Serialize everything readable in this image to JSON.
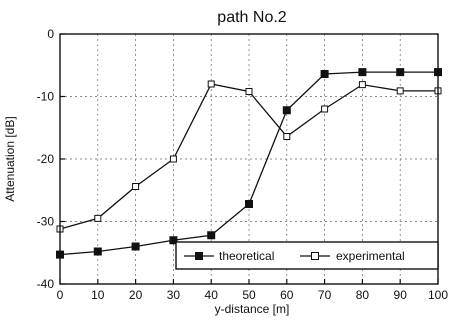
{
  "chart_data": {
    "type": "line",
    "title": "path No.2",
    "xlabel": "y-distance [m]",
    "ylabel": "Attenuation [dB]",
    "xlim": [
      0,
      100
    ],
    "ylim": [
      -40,
      0
    ],
    "xticks": [
      0,
      10,
      20,
      30,
      40,
      50,
      60,
      70,
      80,
      90,
      100
    ],
    "yticks": [
      0,
      -10,
      -20,
      -30,
      -40
    ],
    "grid": true,
    "legend_position": "bottom-right",
    "series": [
      {
        "name": "theoretical",
        "marker": "filled-square",
        "color": "#111111",
        "x": [
          0,
          10,
          20,
          30,
          40,
          50,
          60,
          70,
          80,
          90,
          100
        ],
        "y": [
          -35.3,
          -34.8,
          -34.0,
          -33.0,
          -32.2,
          -27.2,
          -12.2,
          -6.4,
          -6.1,
          -6.1,
          -6.1
        ]
      },
      {
        "name": "experimental",
        "marker": "open-square",
        "color": "#111111",
        "x": [
          0,
          10,
          20,
          30,
          40,
          50,
          60,
          70,
          80,
          90,
          100
        ],
        "y": [
          -31.2,
          -29.5,
          -24.4,
          -20.0,
          -8.0,
          -9.2,
          -16.4,
          -12.0,
          -8.1,
          -9.1,
          -9.1
        ]
      }
    ]
  }
}
